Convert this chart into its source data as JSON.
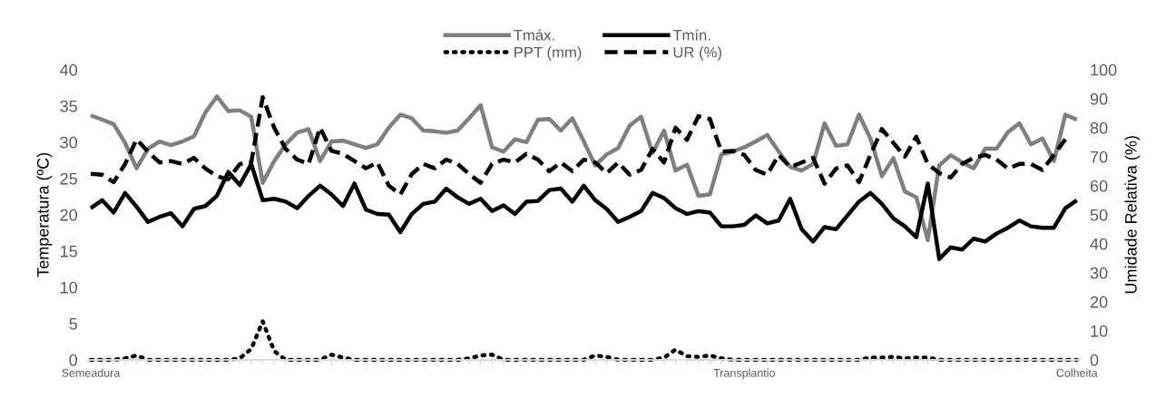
{
  "chart_data": {
    "type": "line",
    "categories": [
      "Semeadura",
      null,
      null,
      null,
      null,
      null,
      null,
      null,
      null,
      null,
      null,
      null,
      null,
      null,
      null,
      null,
      null,
      null,
      null,
      null,
      null,
      null,
      null,
      null,
      null,
      null,
      null,
      null,
      null,
      null,
      null,
      null,
      null,
      null,
      null,
      null,
      null,
      null,
      null,
      null,
      null,
      null,
      null,
      null,
      null,
      null,
      null,
      null,
      null,
      null,
      null,
      null,
      null,
      null,
      null,
      null,
      null,
      "Transplantio",
      null,
      null,
      null,
      null,
      null,
      null,
      null,
      null,
      null,
      null,
      null,
      null,
      null,
      null,
      null,
      null,
      null,
      null,
      null,
      null,
      null,
      null,
      null,
      null,
      null,
      null,
      null,
      null,
      "Colheita"
    ],
    "ylabel": "Temperatura (ºC)",
    "y2label": "Umidade Relativa (%)",
    "ylim": [
      0,
      40
    ],
    "yticks": [
      0,
      5,
      10,
      15,
      20,
      25,
      30,
      35,
      40
    ],
    "y2lim": [
      0,
      100
    ],
    "y2ticks": [
      0,
      10,
      20,
      30,
      40,
      50,
      60,
      70,
      80,
      90,
      100
    ],
    "legend": "top",
    "grid": false,
    "marker": "none",
    "series": [
      {
        "name": "Tmáx.",
        "color": "#7f7f7f",
        "line_style": "solid",
        "values": [
          33.7,
          33.1,
          32.5,
          29.9,
          26.4,
          29.1,
          30.1,
          29.6,
          30.1,
          30.8,
          34.1,
          36.3,
          34.3,
          34.4,
          33.5,
          24.4,
          27.4,
          29.7,
          31.3,
          31.8,
          27.4,
          30.1,
          30.2,
          29.7,
          29.2,
          29.7,
          32.0,
          33.8,
          33.3,
          31.6,
          31.5,
          31.3,
          31.6,
          33.3,
          35.1,
          29.3,
          28.7,
          30.4,
          30.0,
          33.1,
          33.2,
          31.6,
          33.3,
          30.1,
          26.8,
          28.3,
          29.2,
          32.3,
          33.5,
          28.5,
          31.6,
          26.1,
          26.9,
          22.6,
          22.8,
          28.3,
          28.7,
          29.3,
          30.1,
          31.0,
          28.7,
          26.6,
          26.1,
          27.0,
          32.6,
          29.5,
          29.7,
          33.8,
          30.5,
          25.3,
          27.8,
          23.2,
          22.4,
          16.5,
          26.8,
          28.2,
          27.2,
          26.4,
          29.1,
          29.1,
          31.4,
          32.6,
          29.7,
          30.5,
          27.4,
          33.8,
          33.1
        ]
      },
      {
        "name": "Tmín.",
        "color": "#000000",
        "line_style": "solid",
        "values": [
          20.9,
          22.0,
          20.3,
          23.0,
          21.1,
          19.0,
          19.7,
          20.2,
          18.4,
          20.8,
          21.2,
          22.6,
          25.9,
          24.1,
          27.0,
          22.0,
          22.2,
          21.8,
          20.9,
          22.6,
          24.0,
          22.8,
          21.2,
          24.3,
          20.7,
          20.1,
          20.0,
          17.6,
          20.1,
          21.5,
          21.8,
          23.6,
          22.4,
          21.5,
          22.2,
          20.5,
          21.3,
          20.1,
          21.8,
          21.9,
          23.4,
          23.6,
          21.8,
          24.0,
          22.0,
          20.8,
          19.0,
          19.7,
          20.5,
          23.0,
          22.3,
          20.9,
          20.1,
          20.5,
          20.3,
          18.4,
          18.4,
          18.6,
          19.9,
          18.8,
          19.2,
          22.2,
          18.0,
          16.3,
          18.3,
          18.0,
          19.9,
          21.8,
          23.0,
          21.5,
          19.5,
          18.4,
          16.9,
          24.3,
          13.9,
          15.5,
          15.2,
          16.7,
          16.3,
          17.4,
          18.2,
          19.2,
          18.4,
          18.2,
          18.2,
          20.9,
          22.0
        ]
      },
      {
        "name": "PPT (mm)",
        "color": "#000000",
        "line_style": "dotted",
        "values": [
          0,
          0,
          0,
          0.2,
          0.6,
          0,
          0,
          0,
          0,
          0,
          0,
          0,
          0,
          0.2,
          1.5,
          5.3,
          1.2,
          0,
          0,
          0,
          0,
          0.7,
          0.3,
          0,
          0,
          0,
          0,
          0,
          0,
          0,
          0,
          0,
          0,
          0.2,
          0.6,
          0.7,
          0,
          0,
          0,
          0,
          0,
          0,
          0,
          0,
          0.6,
          0.4,
          0,
          0,
          0,
          0,
          0.3,
          1.4,
          0.5,
          0.4,
          0.6,
          0.2,
          0,
          0,
          0,
          0,
          0,
          0,
          0,
          0,
          0,
          0,
          0,
          0,
          0.3,
          0.3,
          0.4,
          0.2,
          0.3,
          0.3,
          0,
          0,
          0,
          0,
          0,
          0,
          0,
          0,
          0,
          0,
          0,
          0,
          0
        ]
      },
      {
        "name": "UR (%)",
        "color": "#000000",
        "line_style": "dashed",
        "axis": "y2",
        "values": [
          64.1,
          63.8,
          61.2,
          67.5,
          76,
          71.7,
          68,
          68.5,
          67.5,
          69.6,
          65.9,
          63.3,
          62.2,
          67.5,
          68,
          90.5,
          80,
          72.7,
          69,
          67.5,
          80,
          72,
          71,
          68.5,
          66,
          68,
          60,
          57,
          64,
          67.5,
          66,
          69,
          67.5,
          64,
          61,
          67.5,
          69,
          68,
          71,
          69,
          65,
          68,
          65,
          69,
          68,
          64.3,
          68,
          63.8,
          65.4,
          72.7,
          68,
          80,
          75.8,
          84,
          83,
          71.7,
          72,
          70.6,
          65.4,
          63.8,
          70.6,
          66.4,
          68,
          69.6,
          60.7,
          65.9,
          67,
          61.2,
          70.6,
          79.5,
          74.8,
          70,
          76.9,
          67.5,
          64.3,
          62.8,
          67.5,
          69.6,
          70.6,
          69,
          65.9,
          67.5,
          67.5,
          65.4,
          70.6,
          76,
          null
        ]
      }
    ]
  }
}
